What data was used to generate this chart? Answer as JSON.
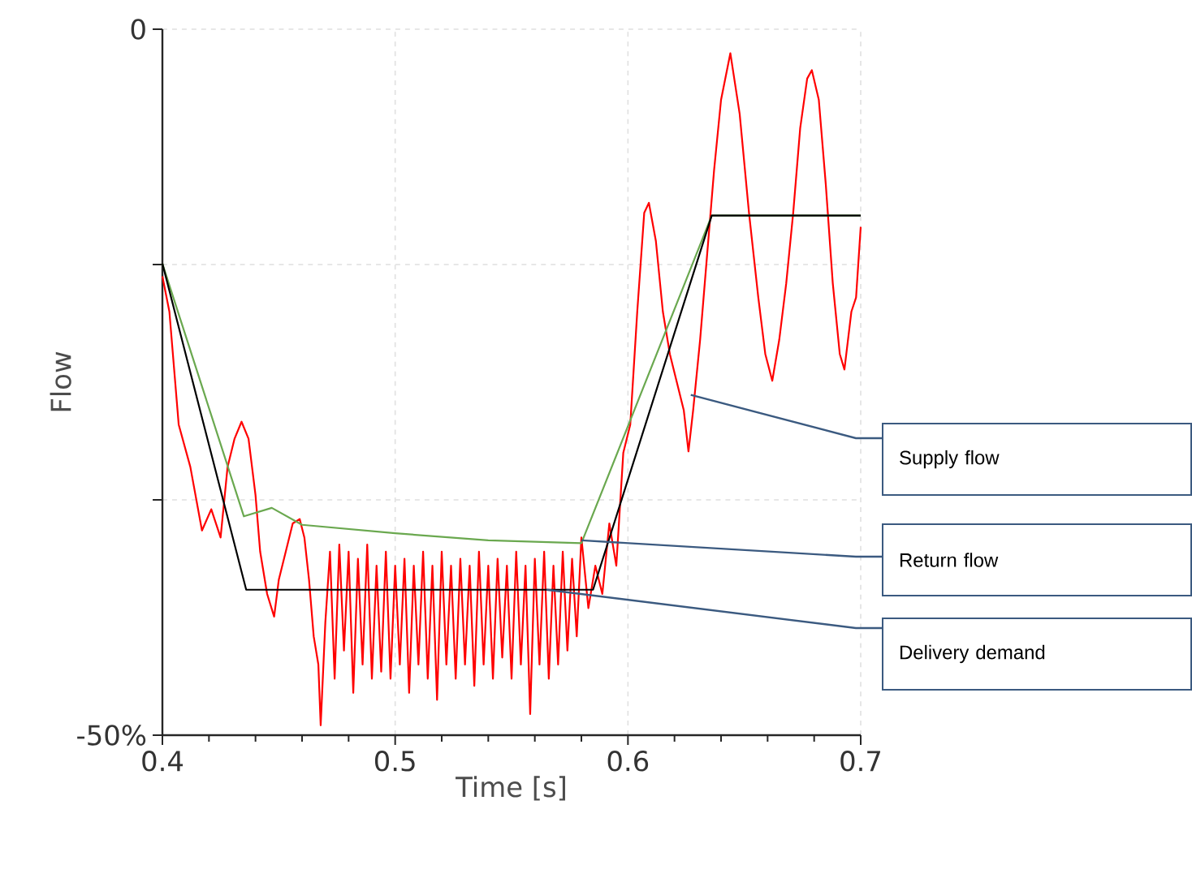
{
  "chart_data": {
    "type": "line",
    "xlabel": "Time [s]",
    "ylabel": "Flow",
    "xlim": [
      0.4,
      0.7
    ],
    "ylim": [
      -50,
      0
    ],
    "xticks": [
      0.4,
      0.5,
      0.6,
      0.7
    ],
    "yticks": [
      {
        "value": -50,
        "label": "-50%"
      },
      {
        "value": -33.33,
        "label": null
      },
      {
        "value": -16.67,
        "label": null
      },
      0
    ],
    "grid": true,
    "line_style": "solid",
    "marker": "none",
    "series": [
      {
        "color": "#ff0000",
        "x": [
          0.4,
          0.403,
          0.407,
          0.412,
          0.417,
          0.421,
          0.425,
          0.428,
          0.431,
          0.434,
          0.437,
          0.44,
          0.442,
          0.445,
          0.448,
          0.45,
          0.453,
          0.456,
          0.459,
          0.461,
          0.463,
          0.465,
          0.467,
          0.468,
          0.47,
          0.472,
          0.474,
          0.476,
          0.478,
          0.48,
          0.482,
          0.484,
          0.486,
          0.488,
          0.49,
          0.492,
          0.494,
          0.496,
          0.498,
          0.5,
          0.502,
          0.504,
          0.506,
          0.508,
          0.51,
          0.512,
          0.514,
          0.516,
          0.518,
          0.52,
          0.522,
          0.524,
          0.526,
          0.528,
          0.53,
          0.532,
          0.534,
          0.536,
          0.538,
          0.54,
          0.542,
          0.544,
          0.546,
          0.548,
          0.55,
          0.552,
          0.554,
          0.556,
          0.558,
          0.56,
          0.562,
          0.564,
          0.566,
          0.568,
          0.57,
          0.572,
          0.574,
          0.576,
          0.578,
          0.58,
          0.583,
          0.586,
          0.589,
          0.592,
          0.595,
          0.598,
          0.601,
          0.604,
          0.607,
          0.609,
          0.612,
          0.615,
          0.618,
          0.621,
          0.624,
          0.626,
          0.628,
          0.631,
          0.634,
          0.637,
          0.64,
          0.644,
          0.648,
          0.652,
          0.656,
          0.659,
          0.662,
          0.665,
          0.668,
          0.671,
          0.674,
          0.677,
          0.679,
          0.682,
          0.685,
          0.688,
          0.691,
          0.693,
          0.696,
          0.698,
          0.7
        ],
        "values": [
          -17.5,
          -20,
          -28,
          -31,
          -35.5,
          -34,
          -36,
          -31,
          -29,
          -27.8,
          -29,
          -33,
          -37,
          -40,
          -41.6,
          -39,
          -37,
          -35,
          -34.7,
          -36,
          -39,
          -43,
          -45,
          -49.3,
          -42,
          -37,
          -46,
          -36.5,
          -44,
          -37,
          -47,
          -37.5,
          -45,
          -36.5,
          -46,
          -38,
          -45.5,
          -37,
          -46,
          -38,
          -45,
          -37.5,
          -47,
          -38,
          -45,
          -37,
          -46,
          -38,
          -47.5,
          -37,
          -45,
          -38,
          -46,
          -37.5,
          -45,
          -38,
          -46.5,
          -37,
          -45,
          -38,
          -46,
          -37.5,
          -44.5,
          -38,
          -46,
          -37,
          -45,
          -38,
          -48.5,
          -37.5,
          -45,
          -37,
          -46,
          -38,
          -45,
          -37,
          -44,
          -37.5,
          -43,
          -36,
          -41,
          -38,
          -40,
          -35,
          -38,
          -30,
          -28,
          -20,
          -13,
          -12.3,
          -15,
          -20,
          -23,
          -25,
          -27,
          -29.9,
          -27,
          -22,
          -16,
          -10,
          -5,
          -1.7,
          -6,
          -13,
          -19,
          -23,
          -24.9,
          -22,
          -18,
          -13,
          -7,
          -3.5,
          -2.9,
          -5,
          -11,
          -18,
          -23,
          -24.1,
          -20,
          -19,
          -14
        ]
      },
      {
        "color": "#6aa84f",
        "x": [
          0.4,
          0.435,
          0.447,
          0.46,
          0.5,
          0.54,
          0.58,
          0.636,
          0.7
        ],
        "values": [
          -16.6,
          -34.5,
          -33.9,
          -35.1,
          -35.7,
          -36.2,
          -36.4,
          -13.2,
          -13.2
        ]
      },
      {
        "color": "#000000",
        "x": [
          0.4,
          0.436,
          0.585,
          0.636,
          0.7
        ],
        "values": [
          -16.6,
          -39.7,
          -39.7,
          -13.2,
          -13.2
        ]
      }
    ],
    "annotations": [
      {
        "text": "Supply flow",
        "x": 0.627,
        "y": -25.9
      },
      {
        "text": "Return flow",
        "x": 0.58,
        "y": -36.2
      },
      {
        "text": "Delivery demand",
        "x": 0.565,
        "y": -39.7
      }
    ]
  }
}
